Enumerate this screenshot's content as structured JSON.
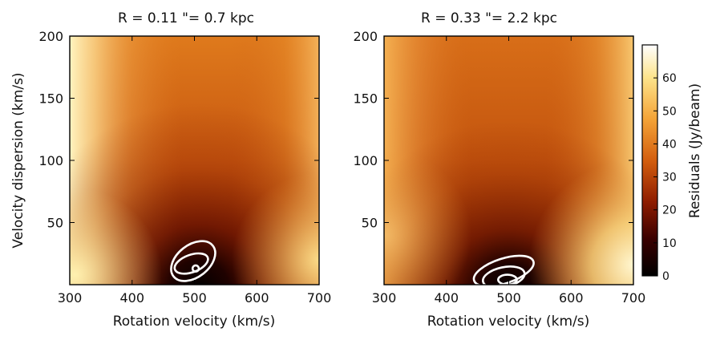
{
  "chart_data": [
    {
      "type": "heatmap",
      "title": "R = 0.11 \"= 0.7 kpc",
      "xlabel": "Rotation velocity (km/s)",
      "ylabel": "Velocity dispersion (km/s)",
      "xlim": [
        300,
        700
      ],
      "ylim": [
        0,
        200
      ],
      "xticks": [
        300,
        400,
        500,
        600,
        700
      ],
      "yticks": [
        50,
        100,
        150,
        200
      ],
      "minimum": {
        "x": 500,
        "y": 15
      },
      "contours": [
        {
          "level": 1,
          "cx": 498,
          "cy": 19,
          "rx": 40,
          "ry": 13,
          "tilt": -38
        },
        {
          "level": 2,
          "cx": 495,
          "cy": 17,
          "rx": 28,
          "ry": 7,
          "tilt": -20
        },
        {
          "level": 3,
          "cx": 502,
          "cy": 13,
          "rx": 5,
          "ry": 2.5,
          "tilt": 0
        }
      ]
    },
    {
      "type": "heatmap",
      "title": "R = 0.33 \"= 2.2 kpc",
      "xlabel": "Rotation velocity (km/s)",
      "ylabel": "",
      "xlim": [
        300,
        700
      ],
      "ylim": [
        0,
        200
      ],
      "xticks": [
        300,
        400,
        500,
        600,
        700
      ],
      "yticks": [
        50,
        100,
        150,
        200
      ],
      "minimum": {
        "x": 495,
        "y": 5
      },
      "contours": [
        {
          "level": 1,
          "cx": 492,
          "cy": 11,
          "rx": 50,
          "ry": 10,
          "tilt": -18
        },
        {
          "level": 2,
          "cx": 492,
          "cy": 6,
          "rx": 34,
          "ry": 8,
          "tilt": -12
        },
        {
          "level": 3,
          "cx": 498,
          "cy": 4,
          "rx": 15,
          "ry": 4,
          "tilt": 0
        }
      ]
    }
  ],
  "colorbar": {
    "label": "Residuals (Jy/beam)",
    "range": [
      0,
      70
    ],
    "ticks": [
      0,
      10,
      20,
      30,
      40,
      50,
      60
    ]
  }
}
